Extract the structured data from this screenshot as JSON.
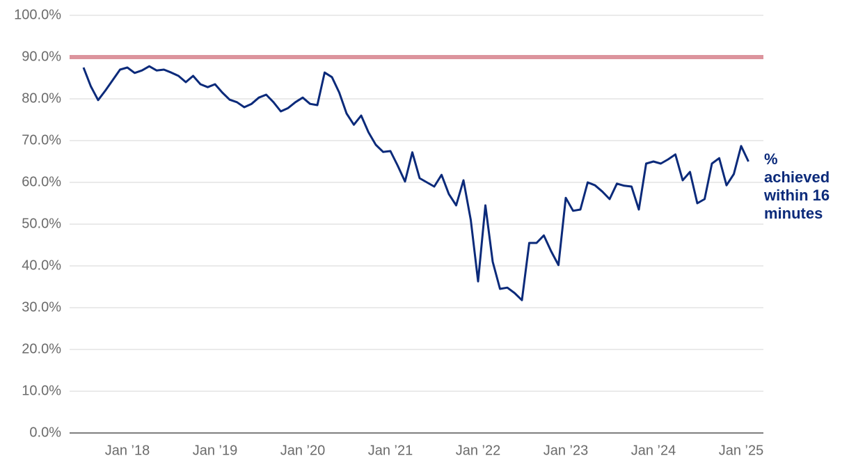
{
  "chart_data": {
    "type": "line",
    "categories": [
      null,
      null,
      null,
      null,
      null,
      null,
      "Jan ’18",
      null,
      null,
      null,
      null,
      null,
      null,
      null,
      null,
      null,
      null,
      null,
      "Jan ’19",
      null,
      null,
      null,
      null,
      null,
      null,
      null,
      null,
      null,
      null,
      null,
      "Jan ’20",
      null,
      null,
      null,
      null,
      null,
      null,
      null,
      null,
      null,
      null,
      null,
      "Jan ’21",
      null,
      null,
      null,
      null,
      null,
      null,
      null,
      null,
      null,
      null,
      null,
      "Jan ’22",
      null,
      null,
      null,
      null,
      null,
      null,
      null,
      null,
      null,
      null,
      null,
      "Jan ’23",
      null,
      null,
      null,
      null,
      null,
      null,
      null,
      null,
      null,
      null,
      null,
      "Jan ’24",
      null,
      null,
      null,
      null,
      null,
      null,
      null,
      null,
      null,
      null,
      null,
      "Jan ’25",
      null
    ],
    "series": [
      {
        "name": "% achieved within 16 minutes",
        "color": "#0b2a7a",
        "values": [
          87.5,
          83,
          79.7,
          82,
          84.5,
          87,
          87.5,
          86.2,
          86.8,
          87.8,
          86.8,
          87,
          86.3,
          85.5,
          84,
          85.5,
          83.5,
          82.8,
          83.5,
          81.5,
          79.8,
          79.2,
          78,
          78.8,
          80.3,
          81,
          79.2,
          77,
          77.8,
          79.2,
          80.3,
          78.8,
          78.5,
          86.3,
          85.2,
          81.5,
          76.5,
          73.8,
          76,
          72,
          69,
          67.3,
          67.5,
          64,
          60.2,
          67.2,
          61,
          60,
          59,
          61.8,
          57.2,
          54.5,
          60.5,
          51,
          36.3,
          54.5,
          41,
          34.5,
          34.8,
          33.5,
          31.8,
          45.5,
          45.5,
          47.3,
          43.5,
          40.2,
          56.3,
          53.2,
          53.5,
          60,
          59.3,
          57.8,
          56,
          59.7,
          59.2,
          59,
          53.5,
          64.5,
          65,
          64.5,
          65.5,
          66.7,
          60.5,
          62.5,
          55,
          56,
          64.5,
          65.8,
          59.3,
          62,
          68.7,
          65
        ]
      }
    ],
    "reference_line": {
      "value": 90,
      "color": "#dc949d"
    },
    "ylim": [
      0,
      100
    ],
    "yticks": [
      {
        "value": 0,
        "label": "0.0%"
      },
      {
        "value": 10,
        "label": "10.0%"
      },
      {
        "value": 20,
        "label": "20.0%"
      },
      {
        "value": 30,
        "label": "30.0%"
      },
      {
        "value": 40,
        "label": "40.0%"
      },
      {
        "value": 50,
        "label": "50.0%"
      },
      {
        "value": 60,
        "label": "60.0%"
      },
      {
        "value": 70,
        "label": "70.0%"
      },
      {
        "value": 80,
        "label": "80.0%"
      },
      {
        "value": 90,
        "label": "90.0%"
      },
      {
        "value": 100,
        "label": "100.0%"
      }
    ],
    "grid": true
  }
}
